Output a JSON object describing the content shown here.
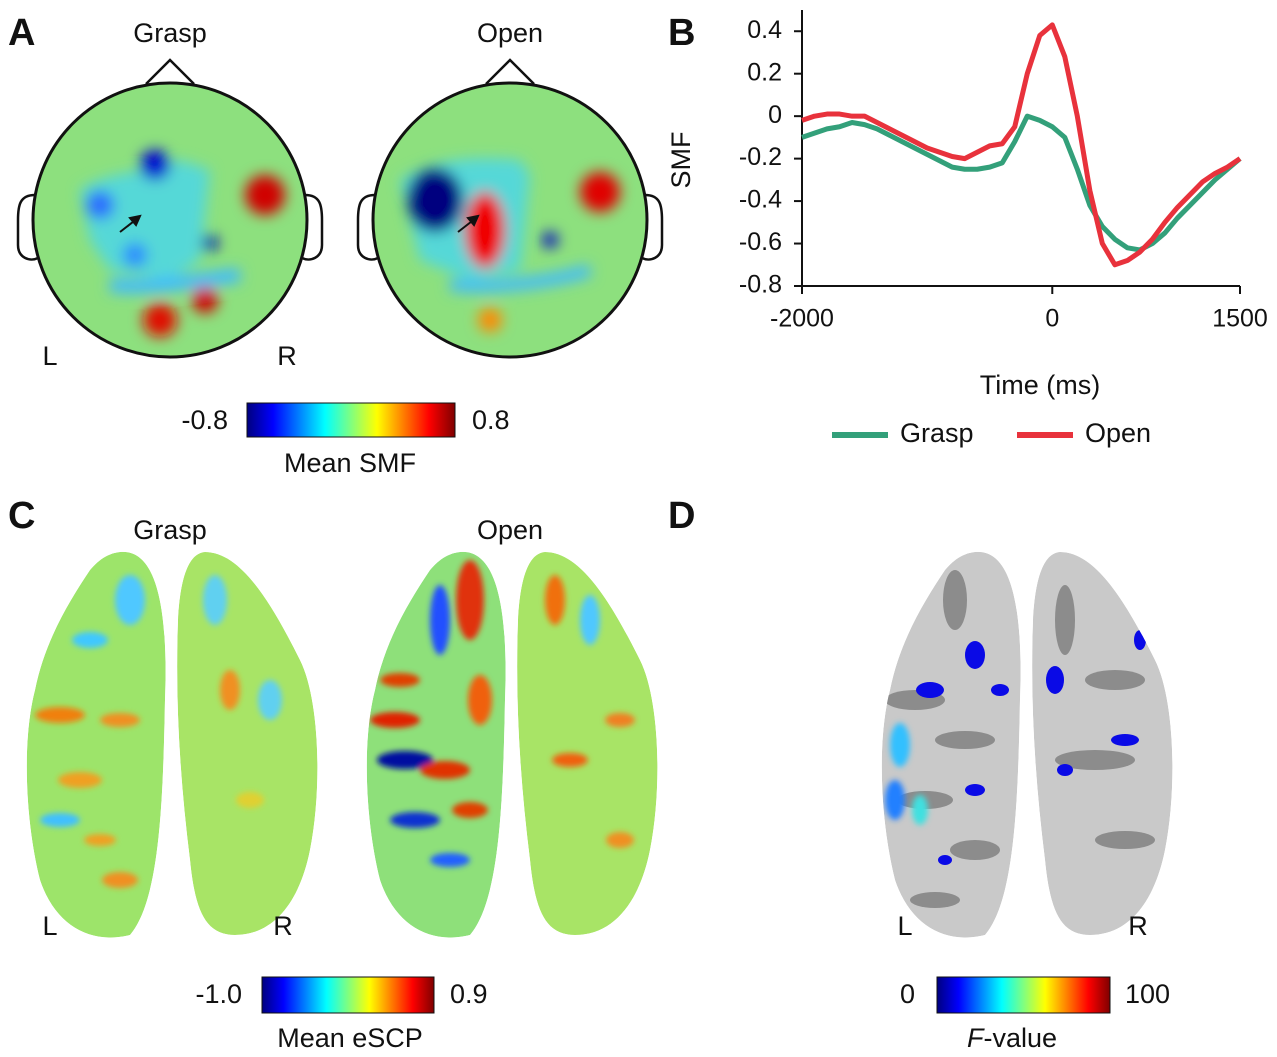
{
  "panel_a": {
    "label": "A",
    "titles": [
      "Grasp",
      "Open"
    ],
    "left": "L",
    "right": "R",
    "colorbar": {
      "min": "-0.8",
      "max": "0.8",
      "label": "Mean SMF"
    }
  },
  "chart_data": {
    "type": "line",
    "label": "B",
    "xlabel": "Time (ms)",
    "ylabel": "SMF",
    "x": [
      -2000,
      -1900,
      -1800,
      -1700,
      -1600,
      -1500,
      -1400,
      -1300,
      -1200,
      -1100,
      -1000,
      -900,
      -800,
      -700,
      -600,
      -500,
      -400,
      -300,
      -200,
      -100,
      0,
      100,
      200,
      300,
      400,
      500,
      600,
      700,
      800,
      900,
      1000,
      1100,
      1200,
      1300,
      1400,
      1500
    ],
    "xlim": [
      -2000,
      1500
    ],
    "xticks": [
      -2000,
      0,
      1500
    ],
    "ylim": [
      -0.8,
      0.5
    ],
    "yticks": [
      -0.8,
      -0.6,
      -0.4,
      -0.2,
      0,
      0.2,
      0.4
    ],
    "series": [
      {
        "name": "Grasp",
        "color": "#33a07a",
        "values": [
          -0.1,
          -0.08,
          -0.06,
          -0.05,
          -0.03,
          -0.04,
          -0.06,
          -0.09,
          -0.12,
          -0.15,
          -0.18,
          -0.21,
          -0.24,
          -0.25,
          -0.25,
          -0.24,
          -0.22,
          -0.12,
          0.0,
          -0.02,
          -0.05,
          -0.1,
          -0.25,
          -0.42,
          -0.52,
          -0.58,
          -0.62,
          -0.63,
          -0.6,
          -0.55,
          -0.48,
          -0.42,
          -0.36,
          -0.3,
          -0.25,
          -0.2
        ]
      },
      {
        "name": "Open",
        "color": "#e8323c",
        "values": [
          -0.02,
          0.0,
          0.01,
          0.01,
          0.0,
          0.0,
          -0.03,
          -0.06,
          -0.09,
          -0.12,
          -0.15,
          -0.17,
          -0.19,
          -0.2,
          -0.17,
          -0.14,
          -0.13,
          -0.05,
          0.2,
          0.38,
          0.43,
          0.28,
          0.0,
          -0.35,
          -0.6,
          -0.7,
          -0.68,
          -0.64,
          -0.58,
          -0.5,
          -0.43,
          -0.37,
          -0.31,
          -0.27,
          -0.24,
          -0.2
        ]
      }
    ]
  },
  "panel_c": {
    "label": "C",
    "titles": [
      "Grasp",
      "Open"
    ],
    "left": "L",
    "right": "R",
    "colorbar": {
      "min": "-1.0",
      "max": "0.9",
      "label": "Mean eSCP"
    }
  },
  "panel_d": {
    "label": "D",
    "left": "L",
    "right": "R",
    "colorbar": {
      "min": "0",
      "max": "100",
      "label_italic": "F",
      "label": "-value"
    }
  }
}
